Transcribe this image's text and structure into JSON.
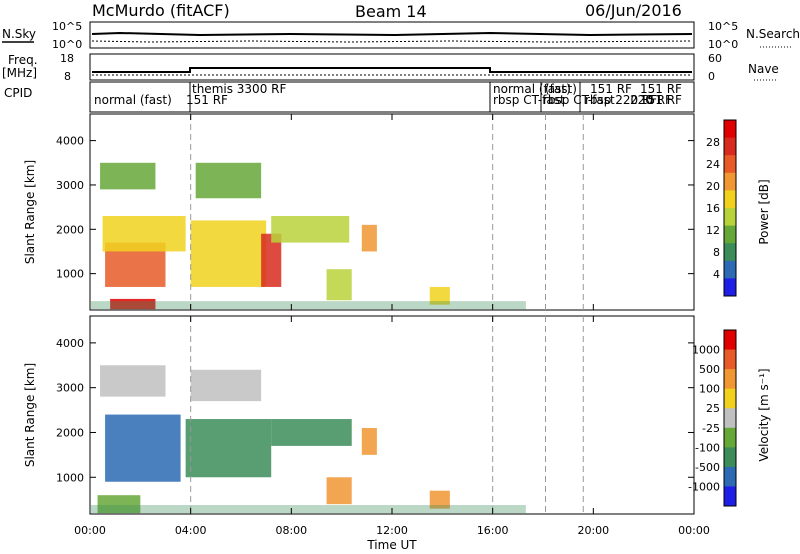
{
  "header": {
    "station": "McMurdo (fitACF)",
    "beam": "Beam 14",
    "date": "06/Jun/2016"
  },
  "strip_panels": {
    "nsky": {
      "label": "N.Sky",
      "ticks_left": [
        "10^5",
        "10^0"
      ]
    },
    "nsearch": {
      "label": "N.Search",
      "ticks_right": [
        "10^5",
        "10^0"
      ]
    },
    "freq": {
      "label_line1": "Freq.",
      "label_line2": "[MHz]",
      "ticks_left": [
        "18",
        "8"
      ]
    },
    "nave": {
      "label": "Nave",
      "ticks_right": [
        "60",
        "0"
      ]
    },
    "cpid": {
      "label": "CPID",
      "segments": [
        "normal (fast)",
        "151 RF",
        "themis 3300 RF",
        "normal (fast)",
        "rbsp CT-fast",
        "rbsp CT-fast",
        "rbsp 220 RF",
        "151 RF",
        "151 RF",
        "220 RF",
        "(fast)",
        "151 RF"
      ]
    }
  },
  "chart_data": [
    {
      "type": "heatmap",
      "title": "",
      "xlabel": "",
      "ylabel": "Slant Range [km]",
      "colorbar_label": "Power [dB]",
      "colorbar_ticks": [
        "28",
        "24",
        "20",
        "16",
        "12",
        "8",
        "4"
      ],
      "xlim_hours": [
        0,
        24
      ],
      "ylim": [
        180,
        4600
      ],
      "y_ticks": [
        "4000",
        "3000",
        "2000",
        "1000"
      ],
      "colors": [
        "#1e1ee6",
        "#2c6ab4",
        "#3c8c5a",
        "#66a838",
        "#b8d23a",
        "#f0d21e",
        "#f09632",
        "#e85a28",
        "#d82a1e",
        "#e00000"
      ],
      "cells": [
        {
          "t": [
            0.8,
            2.6
          ],
          "r": [
            200,
            430
          ],
          "level": 9
        },
        {
          "t": [
            0.6,
            3.0
          ],
          "r": [
            700,
            1700
          ],
          "level": 7
        },
        {
          "t": [
            0.5,
            3.8
          ],
          "r": [
            1500,
            2300
          ],
          "level": 5
        },
        {
          "t": [
            0.4,
            2.6
          ],
          "r": [
            2900,
            3500
          ],
          "level": 3
        },
        {
          "t": [
            4.0,
            7.0
          ],
          "r": [
            700,
            2200
          ],
          "level": 5
        },
        {
          "t": [
            4.2,
            6.8
          ],
          "r": [
            2700,
            3500
          ],
          "level": 3
        },
        {
          "t": [
            6.8,
            7.6
          ],
          "r": [
            700,
            1900
          ],
          "level": 8
        },
        {
          "t": [
            7.2,
            10.3
          ],
          "r": [
            1700,
            2300
          ],
          "level": 4
        },
        {
          "t": [
            9.4,
            10.4
          ],
          "r": [
            400,
            1100
          ],
          "level": 4
        },
        {
          "t": [
            10.8,
            11.4
          ],
          "r": [
            1500,
            2100
          ],
          "level": 6
        },
        {
          "t": [
            13.5,
            14.3
          ],
          "r": [
            300,
            700
          ],
          "level": 5
        }
      ]
    },
    {
      "type": "heatmap",
      "title": "",
      "xlabel": "Time UT",
      "ylabel": "Slant Range [km]",
      "colorbar_label": "Velocity [m s⁻¹]",
      "colorbar_ticks": [
        "1000",
        "500",
        "100",
        "25",
        "-25",
        "-100",
        "-500",
        "-1000"
      ],
      "xlim_hours": [
        0,
        24
      ],
      "x_ticks": [
        "00:00",
        "04:00",
        "08:00",
        "12:00",
        "16:00",
        "20:00",
        "00:00"
      ],
      "ylim": [
        180,
        4600
      ],
      "y_ticks": [
        "4000",
        "3000",
        "2000",
        "1000"
      ],
      "colors": [
        "#1e1ee6",
        "#2c6ab4",
        "#3c8c5a",
        "#66a838",
        "#c0c0c0",
        "#f0d21e",
        "#f09632",
        "#e85a28",
        "#e00000"
      ],
      "cells": [
        {
          "t": [
            0.3,
            2.0
          ],
          "r": [
            200,
            600
          ],
          "level": 3
        },
        {
          "t": [
            0.6,
            3.6
          ],
          "r": [
            900,
            2400
          ],
          "level": 1
        },
        {
          "t": [
            0.4,
            3.0
          ],
          "r": [
            2800,
            3500
          ],
          "level": 4
        },
        {
          "t": [
            3.8,
            7.2
          ],
          "r": [
            1000,
            2300
          ],
          "level": 2
        },
        {
          "t": [
            4.0,
            6.8
          ],
          "r": [
            2700,
            3400
          ],
          "level": 4
        },
        {
          "t": [
            7.2,
            10.4
          ],
          "r": [
            1700,
            2300
          ],
          "level": 2
        },
        {
          "t": [
            9.4,
            10.4
          ],
          "r": [
            400,
            1000
          ],
          "level": 6
        },
        {
          "t": [
            10.8,
            11.4
          ],
          "r": [
            1500,
            2100
          ],
          "level": 6
        },
        {
          "t": [
            13.5,
            14.3
          ],
          "r": [
            300,
            700
          ],
          "level": 6
        }
      ]
    }
  ]
}
